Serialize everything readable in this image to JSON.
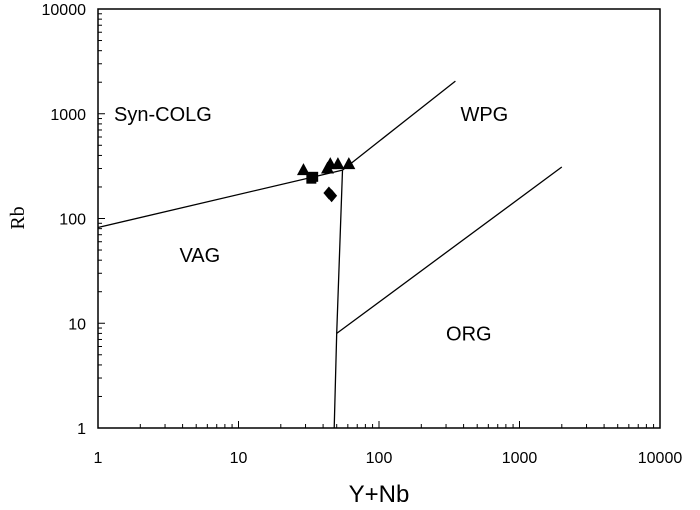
{
  "chart_data": {
    "type": "scatter",
    "title": "",
    "xlabel": "Y+Nb",
    "ylabel": "Rb",
    "xscale": "log",
    "yscale": "log",
    "xlim": [
      1,
      10000
    ],
    "ylim": [
      1,
      10000
    ],
    "grid": false,
    "x_ticks": [
      1,
      10,
      100,
      1000,
      10000
    ],
    "y_ticks": [
      1,
      10,
      100,
      1000,
      10000
    ],
    "x_tick_labels": [
      "1",
      "10",
      "100",
      "1000",
      "10000"
    ],
    "y_tick_labels": [
      "1",
      "10",
      "100",
      "1000",
      "10000"
    ],
    "fields": [
      {
        "name": "Syn-COLG",
        "label_at": [
          1.3,
          1000
        ]
      },
      {
        "name": "WPG",
        "label_at": [
          380,
          1000
        ]
      },
      {
        "name": "VAG",
        "label_at": [
          3.8,
          45
        ]
      },
      {
        "name": "ORG",
        "label_at": [
          300,
          8
        ]
      }
    ],
    "boundaries": [
      {
        "name": "VAG / Syn-COLG",
        "points": [
          [
            1,
            82
          ],
          [
            55,
            290
          ]
        ]
      },
      {
        "name": "Syn-COLG / WPG",
        "points": [
          [
            55,
            290
          ],
          [
            350,
            2050
          ]
        ]
      },
      {
        "name": "VAG / WPG-ORG",
        "points": [
          [
            55,
            290
          ],
          [
            50,
            8
          ],
          [
            48,
            1
          ]
        ]
      },
      {
        "name": "WPG / ORG",
        "points": [
          [
            50,
            8
          ],
          [
            2000,
            310
          ]
        ]
      }
    ],
    "series": [
      {
        "name": "triangles",
        "marker": "triangle",
        "points": [
          [
            29,
            290
          ],
          [
            43,
            300
          ],
          [
            45,
            330
          ],
          [
            51,
            330
          ],
          [
            61,
            330
          ]
        ]
      },
      {
        "name": "squares",
        "marker": "square",
        "points": [
          [
            33,
            240
          ],
          [
            34,
            250
          ]
        ]
      },
      {
        "name": "diamonds",
        "marker": "diamond",
        "points": [
          [
            44,
            175
          ],
          [
            46,
            165
          ]
        ]
      }
    ]
  }
}
